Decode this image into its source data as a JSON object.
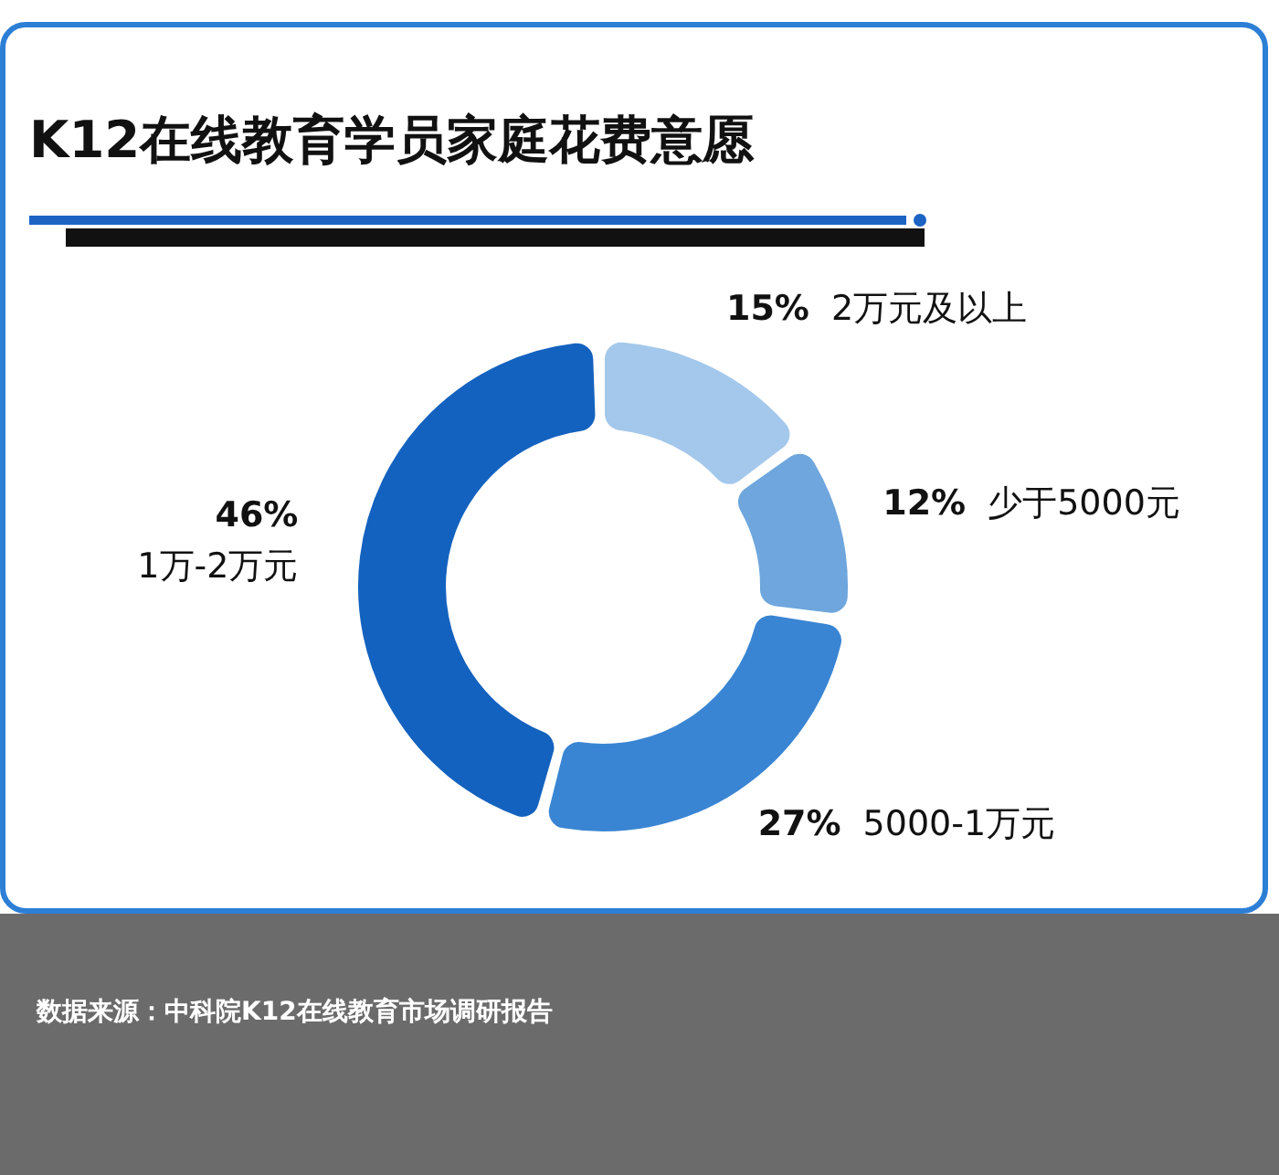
{
  "chart_data": {
    "type": "donut",
    "title": "K12在线教育学员家庭花费意愿",
    "categories": [
      "2万元及以上",
      "少于5000元",
      "5000-1万元",
      "1万-2万元"
    ],
    "values": [
      15,
      12,
      27,
      46
    ],
    "value_labels": [
      "15%",
      "12%",
      "27%",
      "46%"
    ],
    "colors": [
      "#a4c8eb",
      "#6ea6dd",
      "#3a85d3",
      "#1462bf"
    ],
    "annotations": [
      "数据来源：中科院K12在线教育市场调研报告"
    ]
  }
}
